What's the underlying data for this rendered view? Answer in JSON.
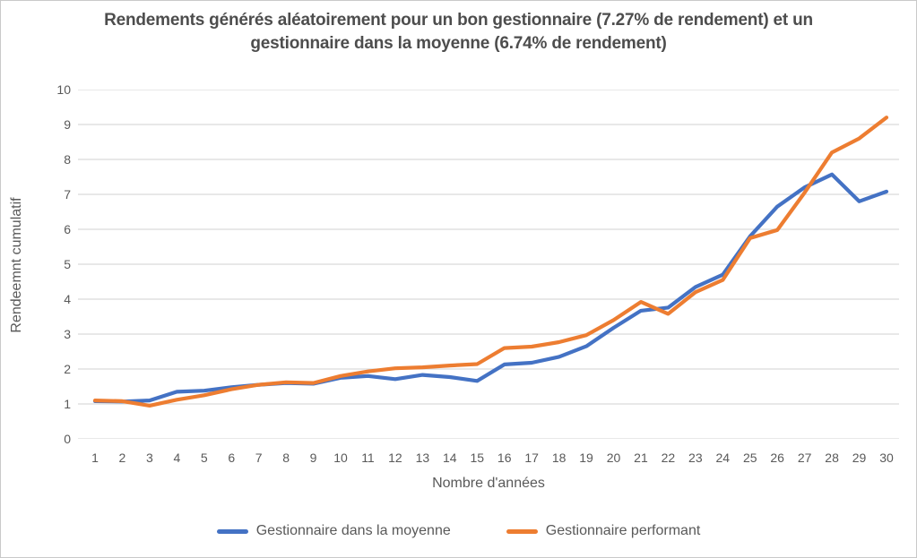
{
  "chart_data": {
    "type": "line",
    "title": "Rendements générés aléatoirement pour un bon gestionnaire (7.27% de rendement) et un gestionnaire dans la moyenne (6.74% de rendement)",
    "xlabel": "Nombre d'années",
    "ylabel": "Rendeemnt cumulatif",
    "x": [
      1,
      2,
      3,
      4,
      5,
      6,
      7,
      8,
      9,
      10,
      11,
      12,
      13,
      14,
      15,
      16,
      17,
      18,
      19,
      20,
      21,
      22,
      23,
      24,
      25,
      26,
      27,
      28,
      29,
      30
    ],
    "series": [
      {
        "name": "Gestionnaire dans la moyenne",
        "color": "#4472C4",
        "values": [
          1.08,
          1.07,
          1.1,
          1.35,
          1.38,
          1.48,
          1.55,
          1.6,
          1.58,
          1.75,
          1.8,
          1.71,
          1.83,
          1.77,
          1.66,
          2.13,
          2.18,
          2.35,
          2.65,
          3.18,
          3.67,
          3.76,
          4.35,
          4.7,
          5.8,
          6.65,
          7.2,
          7.57,
          6.8,
          7.08
        ]
      },
      {
        "name": "Gestionnaire performant",
        "color": "#ED7D31",
        "values": [
          1.1,
          1.08,
          0.95,
          1.12,
          1.25,
          1.42,
          1.55,
          1.62,
          1.6,
          1.8,
          1.93,
          2.02,
          2.05,
          2.1,
          2.14,
          2.6,
          2.64,
          2.77,
          2.97,
          3.4,
          3.92,
          3.58,
          4.2,
          4.55,
          5.75,
          5.98,
          7.05,
          8.2,
          8.6,
          9.2
        ]
      }
    ],
    "ylim": [
      0,
      10
    ],
    "yticks": [
      0,
      1,
      2,
      3,
      4,
      5,
      6,
      7,
      8,
      9,
      10
    ],
    "grid": true,
    "gridline_color": "#D9D9D9",
    "legend_position": "bottom"
  }
}
